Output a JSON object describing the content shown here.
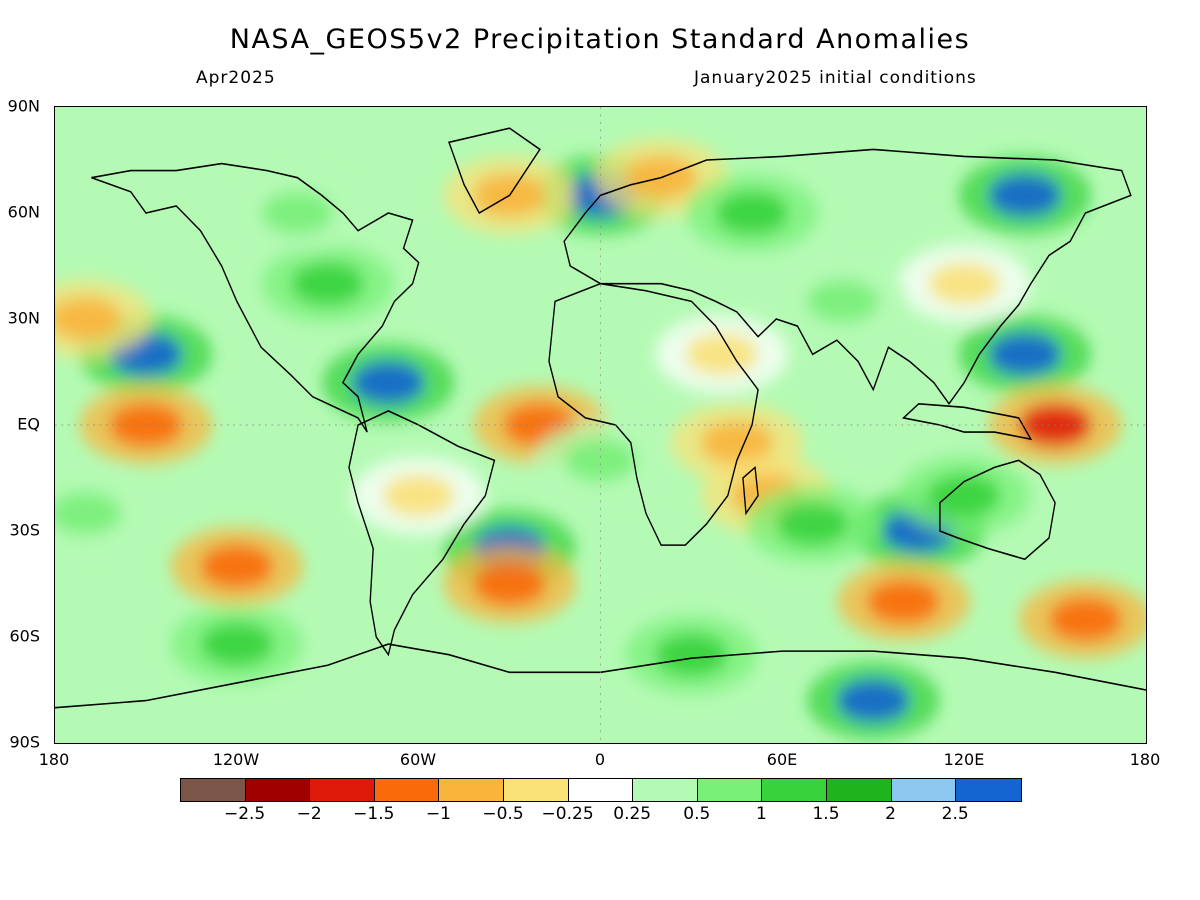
{
  "title": "NASA_GEOS5v2 Precipitation Standard Anomalies",
  "subtitle_left": "Apr2025",
  "subtitle_right": "January2025 initial conditions",
  "lat_labels": [
    "90N",
    "60N",
    "30N",
    "EQ",
    "30S",
    "60S",
    "90S"
  ],
  "lon_labels": [
    "180",
    "120W",
    "60W",
    "0",
    "60E",
    "120E",
    "180"
  ],
  "colorbar": {
    "colors": [
      "#7a5548",
      "#a00000",
      "#e01a0a",
      "#fa6a0a",
      "#fab43c",
      "#fae178",
      "#ffffff",
      "#b4fab4",
      "#78f078",
      "#37d23c",
      "#1eb41e",
      "#8cc8f0",
      "#1464d2"
    ],
    "labels": [
      "-2.5",
      "-2",
      "-1.5",
      "-1",
      "-0.5",
      "-0.25",
      "0.25",
      "0.5",
      "1",
      "1.5",
      "2",
      "2.5"
    ]
  },
  "chart_data": {
    "type": "heatmap",
    "x_range": [
      -180,
      180
    ],
    "y_range": [
      -90,
      90
    ],
    "x_ticks": [
      -180,
      -120,
      -60,
      0,
      60,
      120,
      180
    ],
    "y_ticks": [
      90,
      60,
      30,
      0,
      -30,
      -60,
      -90
    ],
    "anomaly_regions": [
      {
        "lon": -150,
        "lat": 20,
        "value": 2.5
      },
      {
        "lon": -70,
        "lat": 12,
        "value": 2.5
      },
      {
        "lon": 140,
        "lat": 20,
        "value": 2.5
      },
      {
        "lon": 105,
        "lat": -30,
        "value": 2.5
      },
      {
        "lon": -30,
        "lat": -35,
        "value": 2.5
      },
      {
        "lon": 140,
        "lat": 65,
        "value": 2.5
      },
      {
        "lon": 90,
        "lat": -78,
        "value": 2.5
      },
      {
        "lon": 0,
        "lat": 65,
        "value": 2.5
      },
      {
        "lon": -150,
        "lat": 0,
        "value": -1.5
      },
      {
        "lon": -20,
        "lat": 0,
        "value": -1.5
      },
      {
        "lon": 150,
        "lat": 0,
        "value": -2
      },
      {
        "lon": 45,
        "lat": -5,
        "value": -1
      },
      {
        "lon": -120,
        "lat": -40,
        "value": -1.5
      },
      {
        "lon": -30,
        "lat": -45,
        "value": -1.5
      },
      {
        "lon": 100,
        "lat": -50,
        "value": -1.5
      },
      {
        "lon": 160,
        "lat": -55,
        "value": -1.5
      },
      {
        "lon": 20,
        "lat": 70,
        "value": -1
      },
      {
        "lon": -30,
        "lat": 65,
        "value": -1
      },
      {
        "lon": 40,
        "lat": 20,
        "value": -0.5
      },
      {
        "lon": 55,
        "lat": -20,
        "value": -1
      },
      {
        "lon": -60,
        "lat": -20,
        "value": -0.5
      },
      {
        "lon": -170,
        "lat": 30,
        "value": -1
      },
      {
        "lon": 120,
        "lat": 40,
        "value": -0.5
      },
      {
        "lon": 50,
        "lat": 60,
        "value": 1
      },
      {
        "lon": -90,
        "lat": 40,
        "value": 1
      },
      {
        "lon": 30,
        "lat": -65,
        "value": 1
      },
      {
        "lon": -120,
        "lat": -62,
        "value": 1
      },
      {
        "lon": 80,
        "lat": 35,
        "value": 0.5
      },
      {
        "lon": -170,
        "lat": -25,
        "value": 0.5
      },
      {
        "lon": 70,
        "lat": -28,
        "value": 1
      },
      {
        "lon": -100,
        "lat": 60,
        "value": 0.5
      },
      {
        "lon": 0,
        "lat": -10,
        "value": 0.5
      },
      {
        "lon": 120,
        "lat": -20,
        "value": 1
      }
    ]
  }
}
